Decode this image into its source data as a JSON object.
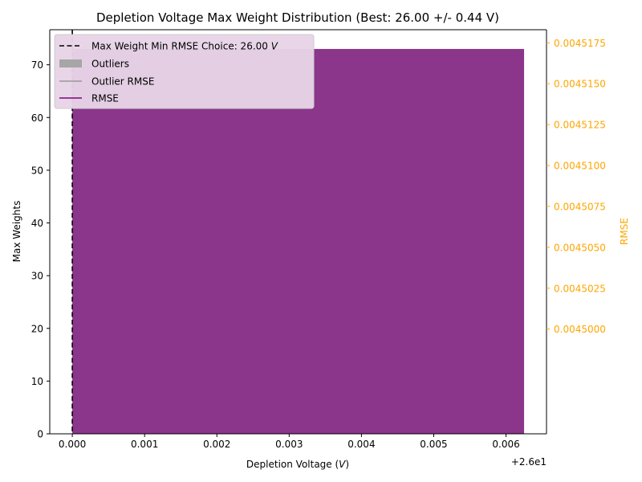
{
  "chart_data": {
    "type": "bar",
    "title": "Depletion Voltage Max Weight Distribution (Best: 26.00 +/- 0.44 V)",
    "xlabel": "Depletion Voltage (V)",
    "xlabel_plain": "Depletion Voltage (",
    "xlabel_italic": "V",
    "xlabel_close": ")",
    "ylabel": "Max Weights",
    "y2label": "RMSE",
    "x_offset_label": "+2.6e1",
    "xlim": [
      -0.000312,
      0.00656
    ],
    "ylim": [
      0,
      76.65
    ],
    "y2lim": [
      0.0044936,
      0.0045183
    ],
    "x_ticks": [
      {
        "value": 0.0,
        "label": "0.000"
      },
      {
        "value": 0.001,
        "label": "0.001"
      },
      {
        "value": 0.002,
        "label": "0.002"
      },
      {
        "value": 0.003,
        "label": "0.003"
      },
      {
        "value": 0.004,
        "label": "0.004"
      },
      {
        "value": 0.005,
        "label": "0.005"
      },
      {
        "value": 0.006,
        "label": "0.006"
      }
    ],
    "y_ticks": [
      {
        "value": 0,
        "label": "0"
      },
      {
        "value": 10,
        "label": "10"
      },
      {
        "value": 20,
        "label": "20"
      },
      {
        "value": 30,
        "label": "30"
      },
      {
        "value": 40,
        "label": "40"
      },
      {
        "value": 50,
        "label": "50"
      },
      {
        "value": 60,
        "label": "60"
      },
      {
        "value": 70,
        "label": "70"
      }
    ],
    "y2_ticks": [
      {
        "value": 0.0045,
        "label": "0.0045000"
      },
      {
        "value": 0.0045025,
        "label": "0.0045025"
      },
      {
        "value": 0.004505,
        "label": "0.0045050"
      },
      {
        "value": 0.0045075,
        "label": "0.0045075"
      },
      {
        "value": 0.00451,
        "label": "0.0045100"
      },
      {
        "value": 0.0045125,
        "label": "0.0045125"
      },
      {
        "value": 0.004515,
        "label": "0.0045150"
      },
      {
        "value": 0.0045175,
        "label": "0.0045175"
      }
    ],
    "bars": [
      {
        "series": "Max Weights",
        "x_start": 0.0,
        "x_end": 0.00625,
        "value": 73,
        "color": "#8b358b"
      }
    ],
    "best_choice": {
      "x": 0.0,
      "label": "Max Weight Min RMSE Choice: 26.00",
      "unit": "V"
    },
    "legend": {
      "position": "top-left",
      "entries": [
        {
          "label": "Max Weight Min RMSE Choice: 26.00 V",
          "text": "Max Weight Min RMSE Choice: 26.00 ",
          "unit": "V",
          "style": "dashed-line",
          "color": "#000000"
        },
        {
          "label": "Outliers",
          "style": "patch",
          "color": "#a6a6a6"
        },
        {
          "label": "Outlier RMSE",
          "style": "line",
          "color": "#999999"
        },
        {
          "label": "RMSE",
          "style": "line",
          "color": "#800080"
        }
      ]
    },
    "colors": {
      "bar": "#8b358b",
      "rmse_axis": "#ffa500",
      "axis": "#000000",
      "legend_bg": "#e7d4e7"
    },
    "grid": false
  }
}
